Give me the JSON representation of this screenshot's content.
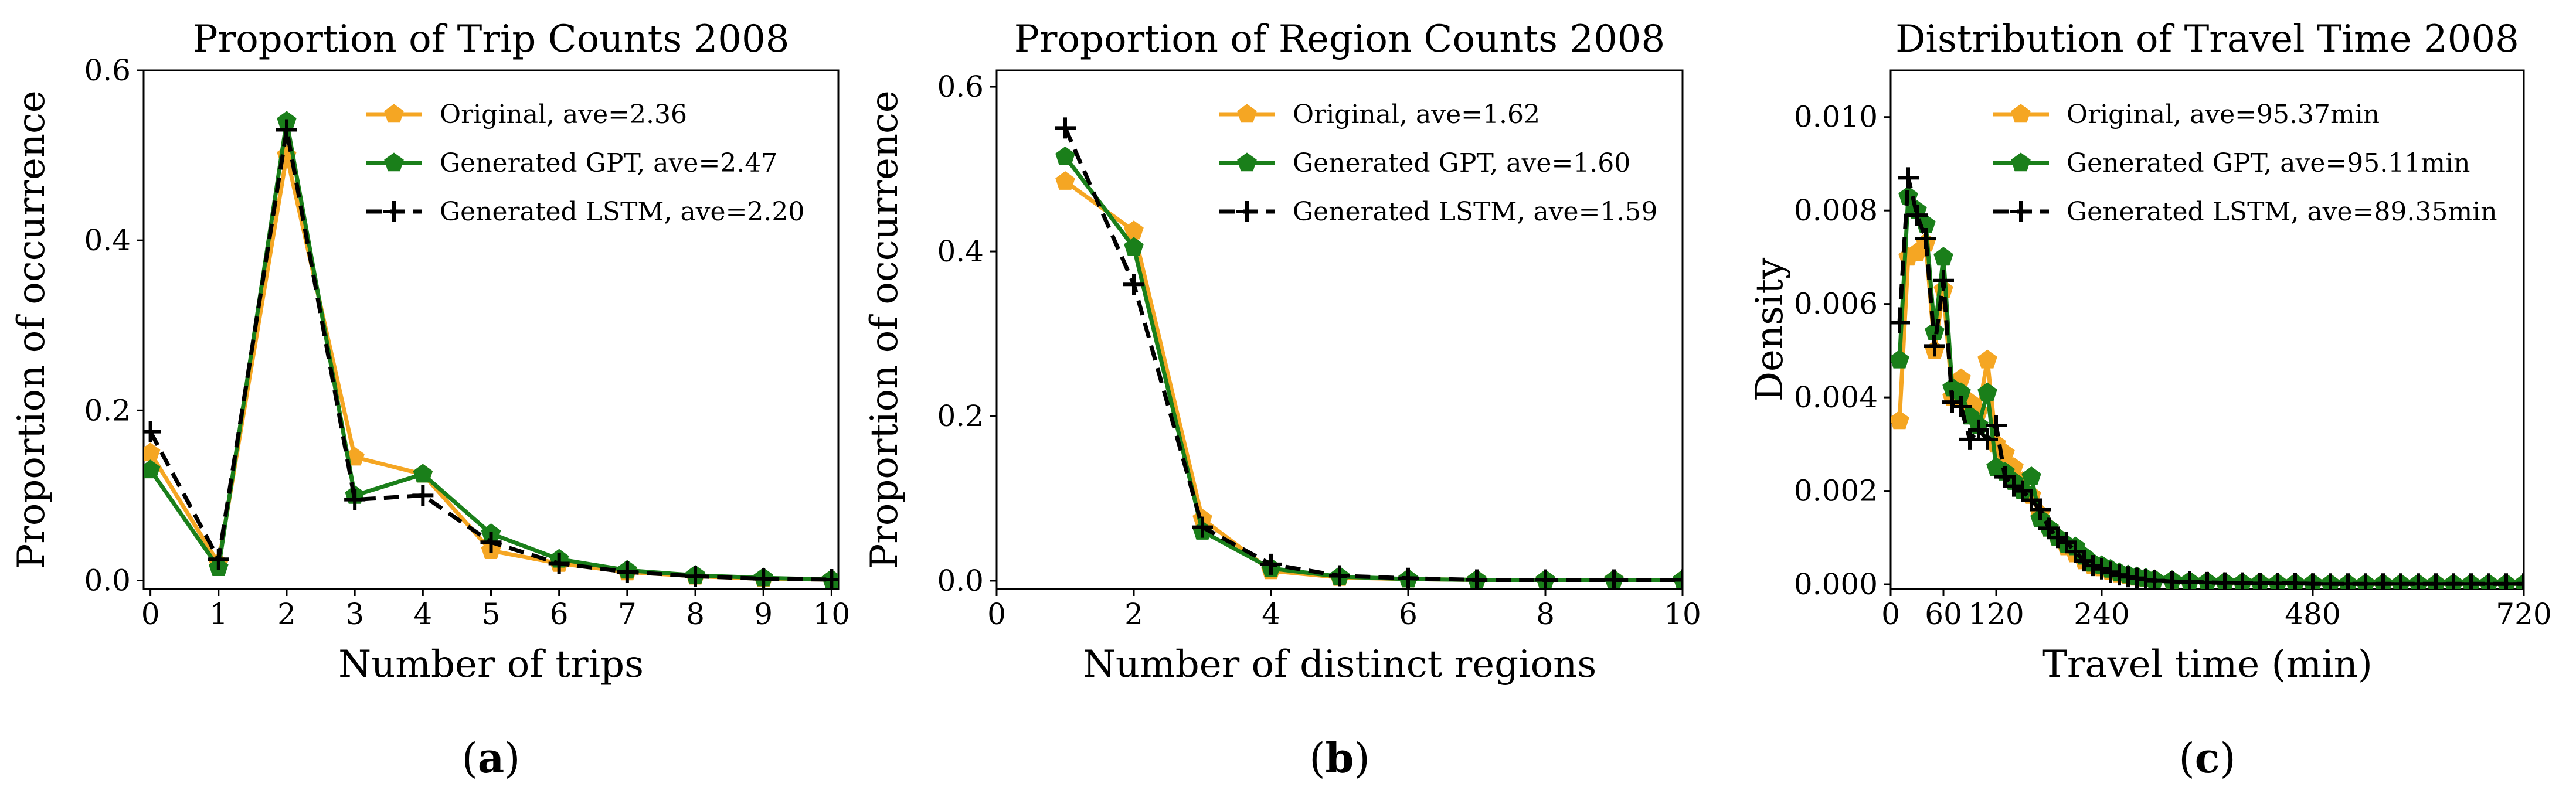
{
  "chart_data": [
    {
      "type": "line",
      "panel_label": "a",
      "title": "Proportion of Trip Counts 2008",
      "xlabel": "Number of trips",
      "ylabel": "Proportion of occurrence",
      "xlim": [
        -0.1,
        10.1
      ],
      "ylim": [
        -0.01,
        0.6
      ],
      "xticks": [
        0,
        1,
        2,
        3,
        4,
        5,
        6,
        7,
        8,
        9,
        10
      ],
      "xtick_labels": [
        "0",
        "1",
        "2",
        "3",
        "4",
        "5",
        "6",
        "7",
        "8",
        "9",
        "10"
      ],
      "yticks": [
        0.0,
        0.2,
        0.4,
        0.6
      ],
      "ytick_labels": [
        "0.0",
        "0.2",
        "0.4",
        "0.6"
      ],
      "legend_position": "top-right",
      "series": [
        {
          "name": "Original, ave=2.36",
          "color": "#f5a623",
          "marker": "pentagon",
          "style": "solid",
          "x": [
            0,
            1,
            2,
            3,
            4,
            5,
            6,
            7,
            8,
            9,
            10
          ],
          "y": [
            0.15,
            0.02,
            0.5,
            0.145,
            0.125,
            0.035,
            0.02,
            0.01,
            0.005,
            0.002,
            0.001
          ]
        },
        {
          "name": "Generated GPT, ave=2.47",
          "color": "#1a7f1a",
          "marker": "pentagon",
          "style": "solid",
          "x": [
            0,
            1,
            2,
            3,
            4,
            5,
            6,
            7,
            8,
            9,
            10
          ],
          "y": [
            0.13,
            0.015,
            0.54,
            0.1,
            0.125,
            0.055,
            0.025,
            0.012,
            0.006,
            0.003,
            0.001
          ]
        },
        {
          "name": "Generated LSTM, ave=2.20",
          "color": "#000000",
          "marker": "plus",
          "style": "dashed",
          "x": [
            0,
            1,
            2,
            3,
            4,
            5,
            6,
            7,
            8,
            9,
            10
          ],
          "y": [
            0.175,
            0.025,
            0.53,
            0.095,
            0.1,
            0.045,
            0.02,
            0.01,
            0.005,
            0.002,
            0.001
          ]
        }
      ]
    },
    {
      "type": "line",
      "panel_label": "b",
      "title": "Proportion of Region Counts 2008",
      "xlabel": "Number of distinct regions",
      "ylabel": "Proportion of occurrence",
      "xlim": [
        0,
        10
      ],
      "ylim": [
        -0.01,
        0.62
      ],
      "xticks": [
        0,
        2,
        4,
        6,
        8,
        10
      ],
      "xtick_labels": [
        "0",
        "2",
        "4",
        "6",
        "8",
        "10"
      ],
      "yticks": [
        0.0,
        0.2,
        0.4,
        0.6
      ],
      "ytick_labels": [
        "0.0",
        "0.2",
        "0.4",
        "0.6"
      ],
      "legend_position": "top-right",
      "series": [
        {
          "name": "Original, ave=1.62",
          "color": "#f5a623",
          "marker": "pentagon",
          "style": "solid",
          "x": [
            1,
            2,
            3,
            4,
            5,
            6,
            7,
            8,
            9,
            10
          ],
          "y": [
            0.485,
            0.425,
            0.075,
            0.012,
            0.004,
            0.002,
            0.001,
            0.001,
            0.001,
            0.001
          ]
        },
        {
          "name": "Generated GPT, ave=1.60",
          "color": "#1a7f1a",
          "marker": "pentagon",
          "style": "solid",
          "x": [
            1,
            2,
            3,
            4,
            5,
            6,
            7,
            8,
            9,
            10
          ],
          "y": [
            0.515,
            0.405,
            0.06,
            0.015,
            0.005,
            0.002,
            0.001,
            0.001,
            0.001,
            0.001
          ]
        },
        {
          "name": "Generated LSTM, ave=1.59",
          "color": "#000000",
          "marker": "plus",
          "style": "dashed",
          "x": [
            1,
            2,
            3,
            4,
            5,
            6,
            7,
            8,
            9,
            10
          ],
          "y": [
            0.55,
            0.36,
            0.065,
            0.02,
            0.006,
            0.003,
            0.001,
            0.001,
            0.001,
            0.001
          ]
        }
      ]
    },
    {
      "type": "line",
      "panel_label": "c",
      "title": "Distribution of Travel Time 2008",
      "xlabel": "Travel time (min)",
      "ylabel": "Density",
      "xlim": [
        0,
        720
      ],
      "ylim": [
        -0.0001,
        0.011
      ],
      "xticks": [
        0,
        60,
        120,
        240,
        480,
        720
      ],
      "xtick_labels": [
        "0",
        "60",
        "120",
        "240",
        "480",
        "720"
      ],
      "yticks": [
        0.0,
        0.002,
        0.004,
        0.006,
        0.008,
        0.01
      ],
      "ytick_labels": [
        "0.000",
        "0.002",
        "0.004",
        "0.006",
        "0.008",
        "0.010"
      ],
      "legend_position": "top-right",
      "series": [
        {
          "name": "Original, ave=95.37min",
          "color": "#f5a623",
          "marker": "pentagon",
          "style": "solid",
          "x": [
            10,
            20,
            30,
            40,
            50,
            60,
            70,
            80,
            90,
            100,
            110,
            120,
            130,
            140,
            150,
            160,
            170,
            180,
            190,
            200,
            210,
            220,
            230,
            240,
            250,
            260,
            270,
            280,
            290,
            300,
            320,
            340,
            360,
            380,
            400,
            420,
            440,
            460,
            480,
            500,
            520,
            540,
            560,
            580,
            600,
            620,
            640,
            660,
            680,
            700,
            720
          ],
          "y": [
            0.0035,
            0.007,
            0.0071,
            0.0073,
            0.005,
            0.0063,
            0.004,
            0.0044,
            0.0039,
            0.0037,
            0.0048,
            0.003,
            0.0028,
            0.0025,
            0.0022,
            0.0019,
            0.0015,
            0.0012,
            0.001,
            0.0008,
            0.00065,
            0.0005,
            0.0004,
            0.00035,
            0.00028,
            0.00022,
            0.00018,
            0.00015,
            0.00012,
            0.0001,
            8e-05,
            6e-05,
            5e-05,
            4e-05,
            3e-05,
            3e-05,
            2e-05,
            2e-05,
            2e-05,
            1e-05,
            1e-05,
            1e-05,
            1e-05,
            1e-05,
            1e-05,
            1e-05,
            1e-05,
            1e-05,
            1e-05,
            1e-05,
            1e-05
          ]
        },
        {
          "name": "Generated GPT, ave=95.11min",
          "color": "#1a7f1a",
          "marker": "pentagon",
          "style": "solid",
          "x": [
            10,
            20,
            30,
            40,
            50,
            60,
            70,
            80,
            90,
            100,
            110,
            120,
            130,
            140,
            150,
            160,
            170,
            180,
            190,
            200,
            210,
            220,
            230,
            240,
            250,
            260,
            270,
            280,
            290,
            300,
            320,
            340,
            360,
            380,
            400,
            420,
            440,
            460,
            480,
            500,
            520,
            540,
            560,
            580,
            600,
            620,
            640,
            660,
            680,
            700,
            720
          ],
          "y": [
            0.0048,
            0.0083,
            0.008,
            0.0077,
            0.0054,
            0.007,
            0.0042,
            0.0041,
            0.0036,
            0.0034,
            0.0041,
            0.0025,
            0.0024,
            0.0022,
            0.002,
            0.0023,
            0.0014,
            0.0012,
            0.001,
            0.00085,
            0.0008,
            0.0006,
            0.00045,
            0.0004,
            0.00032,
            0.00025,
            0.0002,
            0.00016,
            0.00013,
            0.0001,
            8e-05,
            6e-05,
            5e-05,
            4e-05,
            3e-05,
            3e-05,
            2e-05,
            2e-05,
            2e-05,
            1e-05,
            1e-05,
            1e-05,
            1e-05,
            1e-05,
            1e-05,
            1e-05,
            1e-05,
            1e-05,
            1e-05,
            1e-05,
            1e-05
          ]
        },
        {
          "name": "Generated LSTM, ave=89.35min",
          "color": "#000000",
          "marker": "plus",
          "style": "dashed",
          "x": [
            10,
            20,
            30,
            40,
            50,
            60,
            70,
            80,
            90,
            100,
            110,
            120,
            130,
            140,
            150,
            160,
            170,
            180,
            190,
            200,
            210,
            220,
            230,
            240,
            250,
            260,
            270,
            280,
            290,
            300,
            320,
            340,
            360,
            380,
            400,
            420,
            440,
            460,
            480,
            500,
            520,
            540,
            560,
            580,
            600,
            620,
            640,
            660,
            680,
            700,
            720
          ],
          "y": [
            0.0056,
            0.0087,
            0.0079,
            0.0074,
            0.0051,
            0.0065,
            0.0039,
            0.0038,
            0.0031,
            0.0033,
            0.0031,
            0.0034,
            0.0023,
            0.0021,
            0.002,
            0.0018,
            0.0016,
            0.0012,
            0.001,
            0.0009,
            0.0007,
            0.0005,
            0.0004,
            0.00033,
            0.00026,
            0.0002,
            0.00016,
            0.00013,
            0.0001,
            8e-05,
            6e-05,
            5e-05,
            4e-05,
            3e-05,
            3e-05,
            2e-05,
            2e-05,
            2e-05,
            1e-05,
            1e-05,
            1e-05,
            1e-05,
            1e-05,
            1e-05,
            1e-05,
            1e-05,
            1e-05,
            1e-05,
            1e-05,
            1e-05,
            1e-05
          ]
        }
      ]
    }
  ]
}
